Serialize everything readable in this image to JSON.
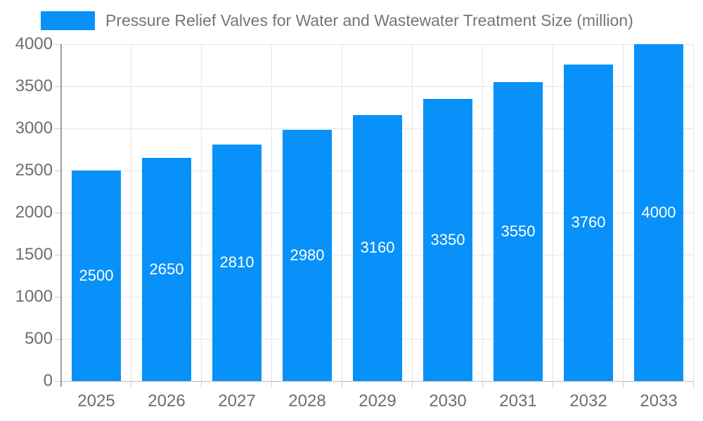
{
  "chart_data": {
    "type": "bar",
    "title": "Pressure Relief Valves for Water and Wastewater Treatment Size (million)",
    "categories": [
      "2025",
      "2026",
      "2027",
      "2028",
      "2029",
      "2030",
      "2031",
      "2032",
      "2033"
    ],
    "values": [
      2500,
      2650,
      2810,
      2980,
      3160,
      3350,
      3550,
      3760,
      4000
    ],
    "xlabel": "",
    "ylabel": "",
    "ylim": [
      0,
      4000
    ],
    "yticks": [
      0,
      500,
      1000,
      1500,
      2000,
      2500,
      3000,
      3500,
      4000
    ],
    "grid": true,
    "legend_position": "top-left",
    "bar_value_labels_inside": true,
    "colors": {
      "bar": "#0891f8",
      "bar_label_text": "#ffffff",
      "axis_text": "#6e6e6e",
      "title_text": "#757575",
      "gridline": "#e6e6e6",
      "zero_line": "#bdbdbd",
      "axis_line": "#9e9e9e"
    }
  }
}
